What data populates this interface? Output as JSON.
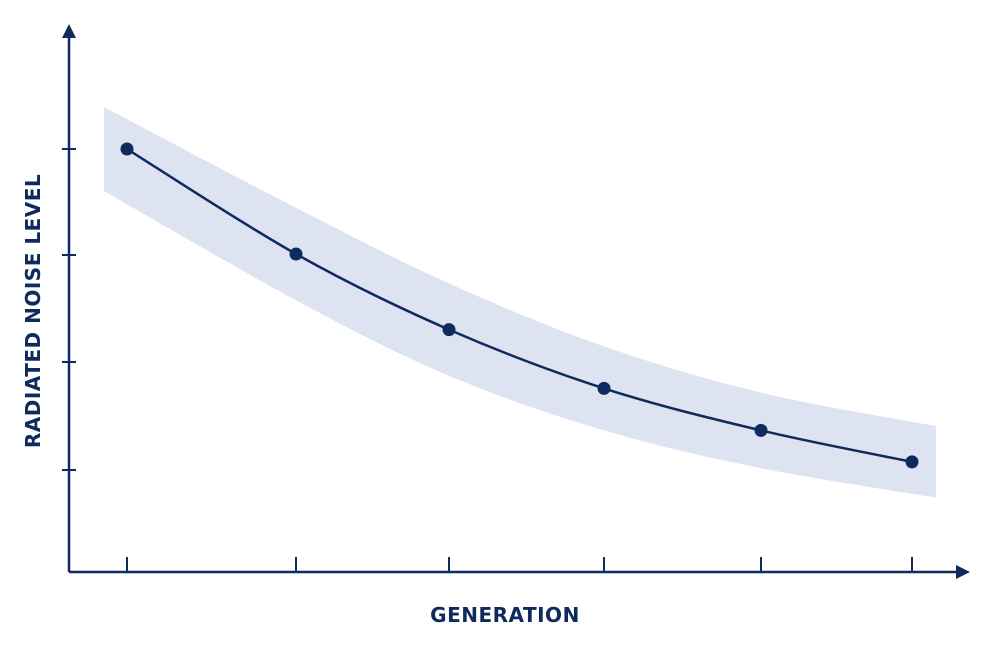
{
  "chart_data": {
    "type": "line",
    "title": "",
    "xlabel": "GENERATION",
    "ylabel": "RADIATED NOISE LEVEL",
    "x": [
      1,
      2,
      3,
      4,
      5,
      6
    ],
    "series": [
      {
        "values": [
          100,
          75,
          57,
          43,
          33,
          25.5
        ],
        "band_upper": [
          110,
          86,
          68,
          53,
          42,
          34
        ],
        "band_lower": [
          90,
          64,
          46,
          33,
          24,
          17
        ]
      }
    ],
    "x_ticks_labeled": false,
    "y_ticks_labeled": false,
    "grid": false,
    "legend": "none"
  },
  "colors": {
    "axis": "#0f2a5c",
    "line": "#0f2a5c",
    "marker": "#0f2a5c",
    "band": "#dde3f1",
    "label": "#0f2a5c"
  }
}
